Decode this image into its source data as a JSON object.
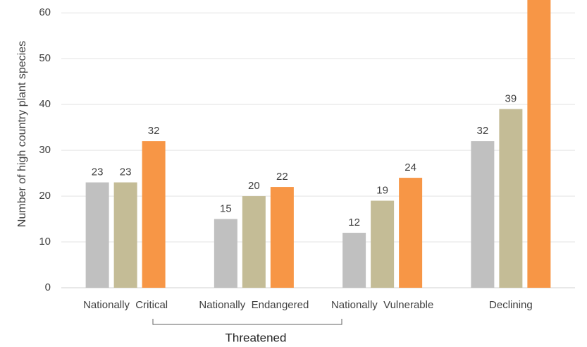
{
  "chart_data": {
    "type": "bar",
    "y_label": "Number of high country plant species",
    "categories": [
      "Nationally  Critical",
      "Nationally  Endangered",
      "Nationally  Vulnerable",
      "Declining"
    ],
    "group_label": "Threatened",
    "series": [
      {
        "color": "#c0c0c0",
        "values": [
          23,
          15,
          12,
          32
        ]
      },
      {
        "color": "#c4bc96",
        "values": [
          23,
          20,
          19,
          39
        ]
      },
      {
        "color": "#f79646",
        "values": [
          32,
          22,
          24,
          66
        ]
      }
    ],
    "ylim": [
      0,
      62.8
    ],
    "yticks": [
      0,
      10,
      20,
      30,
      40,
      50,
      60
    ],
    "grid": true
  }
}
